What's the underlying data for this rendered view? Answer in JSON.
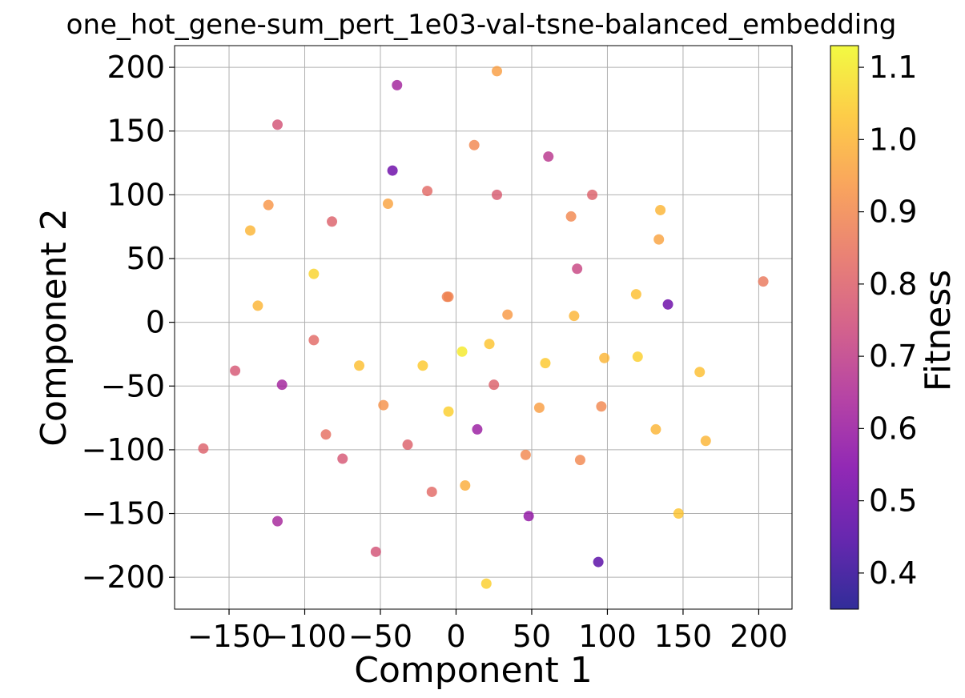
{
  "chart_data": {
    "type": "scatter",
    "title": "one_hot_gene-sum_pert_1e03-val-tsne-balanced_embedding",
    "xlabel": "Component 1",
    "ylabel": "Component 2",
    "colorbar_label": "Fitness",
    "colormap": "plasma",
    "xlim": [
      -186,
      222
    ],
    "ylim": [
      -225,
      217
    ],
    "clim": [
      0.35,
      1.13
    ],
    "grid": true,
    "xticks": [
      -150,
      -100,
      -50,
      0,
      50,
      100,
      150,
      200
    ],
    "xtick_labels": [
      "−150",
      "−100",
      "−50",
      "0",
      "50",
      "100",
      "150",
      "200"
    ],
    "yticks": [
      -200,
      -150,
      -100,
      -50,
      0,
      50,
      100,
      150,
      200
    ],
    "ytick_labels": [
      "−200",
      "−150",
      "−100",
      "−50",
      "0",
      "50",
      "100",
      "150",
      "200"
    ],
    "cticks": [
      0.4,
      0.5,
      0.6,
      0.7,
      0.8,
      0.9,
      1.0,
      1.1
    ],
    "ctick_labels": [
      "0.4",
      "0.5",
      "0.6",
      "0.7",
      "0.8",
      "0.9",
      "1.0",
      "1.1"
    ],
    "points": [
      {
        "x": -39,
        "y": 186,
        "c": 0.62
      },
      {
        "x": 27,
        "y": 197,
        "c": 0.95
      },
      {
        "x": -118,
        "y": 155,
        "c": 0.76
      },
      {
        "x": 12,
        "y": 139,
        "c": 0.9
      },
      {
        "x": 61,
        "y": 130,
        "c": 0.68
      },
      {
        "x": -42,
        "y": 119,
        "c": 0.5
      },
      {
        "x": -19,
        "y": 103,
        "c": 0.82
      },
      {
        "x": 27,
        "y": 100,
        "c": 0.78
      },
      {
        "x": 90,
        "y": 100,
        "c": 0.8
      },
      {
        "x": -124,
        "y": 92,
        "c": 0.93
      },
      {
        "x": -45,
        "y": 93,
        "c": 0.96
      },
      {
        "x": 135,
        "y": 88,
        "c": 1.0
      },
      {
        "x": -82,
        "y": 79,
        "c": 0.8
      },
      {
        "x": 76,
        "y": 83,
        "c": 0.9
      },
      {
        "x": -136,
        "y": 72,
        "c": 1.0
      },
      {
        "x": 134,
        "y": 65,
        "c": 0.96
      },
      {
        "x": 80,
        "y": 42,
        "c": 0.72
      },
      {
        "x": 203,
        "y": 32,
        "c": 0.86
      },
      {
        "x": -94,
        "y": 38,
        "c": 1.06
      },
      {
        "x": -6,
        "y": 20,
        "c": 0.88
      },
      {
        "x": -5,
        "y": 20,
        "c": 0.89
      },
      {
        "x": 119,
        "y": 22,
        "c": 1.02
      },
      {
        "x": -131,
        "y": 13,
        "c": 1.0
      },
      {
        "x": 140,
        "y": 14,
        "c": 0.5
      },
      {
        "x": 34,
        "y": 6,
        "c": 0.94
      },
      {
        "x": 78,
        "y": 5,
        "c": 1.0
      },
      {
        "x": -94,
        "y": -14,
        "c": 0.82
      },
      {
        "x": 4,
        "y": -23,
        "c": 1.1
      },
      {
        "x": 22,
        "y": -17,
        "c": 1.03
      },
      {
        "x": 98,
        "y": -28,
        "c": 1.0
      },
      {
        "x": 120,
        "y": -27,
        "c": 1.05
      },
      {
        "x": -146,
        "y": -38,
        "c": 0.77
      },
      {
        "x": -64,
        "y": -34,
        "c": 1.02
      },
      {
        "x": -22,
        "y": -34,
        "c": 1.04
      },
      {
        "x": 59,
        "y": -32,
        "c": 1.04
      },
      {
        "x": 161,
        "y": -39,
        "c": 1.02
      },
      {
        "x": -115,
        "y": -49,
        "c": 0.62
      },
      {
        "x": 25,
        "y": -49,
        "c": 0.8
      },
      {
        "x": -48,
        "y": -65,
        "c": 0.92
      },
      {
        "x": 55,
        "y": -67,
        "c": 0.95
      },
      {
        "x": 96,
        "y": -66,
        "c": 0.9
      },
      {
        "x": -5,
        "y": -70,
        "c": 1.05
      },
      {
        "x": 14,
        "y": -84,
        "c": 0.6
      },
      {
        "x": 132,
        "y": -84,
        "c": 1.0
      },
      {
        "x": -86,
        "y": -88,
        "c": 0.84
      },
      {
        "x": 165,
        "y": -93,
        "c": 1.0
      },
      {
        "x": -32,
        "y": -96,
        "c": 0.8
      },
      {
        "x": -167,
        "y": -99,
        "c": 0.8
      },
      {
        "x": 46,
        "y": -104,
        "c": 0.9
      },
      {
        "x": -75,
        "y": -107,
        "c": 0.77
      },
      {
        "x": 82,
        "y": -108,
        "c": 0.9
      },
      {
        "x": 6,
        "y": -128,
        "c": 0.98
      },
      {
        "x": -16,
        "y": -133,
        "c": 0.82
      },
      {
        "x": 48,
        "y": -152,
        "c": 0.58
      },
      {
        "x": 147,
        "y": -150,
        "c": 1.03
      },
      {
        "x": -118,
        "y": -156,
        "c": 0.63
      },
      {
        "x": -53,
        "y": -180,
        "c": 0.76
      },
      {
        "x": 94,
        "y": -188,
        "c": 0.46
      },
      {
        "x": 20,
        "y": -205,
        "c": 1.05
      }
    ]
  }
}
